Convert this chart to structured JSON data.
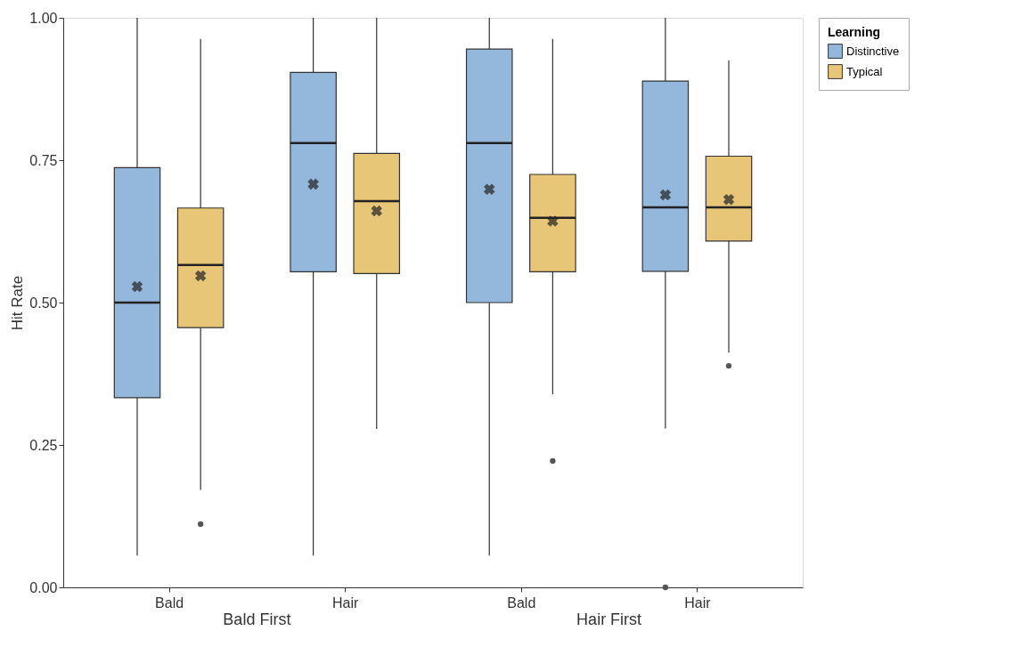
{
  "chart_data": {
    "type": "box",
    "ylabel": "Hit Rate",
    "legend_title": "Learning",
    "legend": "right",
    "grid": false,
    "categories": [
      "Bald",
      "Hair",
      "Bald",
      "Hair"
    ],
    "annotations": [
      "Bald First",
      "Hair First"
    ],
    "ylim": [
      0,
      1
    ],
    "yticks": [
      {
        "value": 0,
        "label": "0.00"
      },
      0.25,
      {
        "value": 0.5,
        "label": "0.50"
      },
      0.75,
      {
        "value": 1,
        "label": "1.00"
      }
    ],
    "series": [
      {
        "name": "Distinctive",
        "color": "#94b7dc",
        "boxes": [
          {
            "low": 0.056,
            "q1": 0.333,
            "median": 0.5,
            "q3": 0.737,
            "high": 1.0,
            "mean": 0.528
          },
          {
            "low": 0.056,
            "q1": 0.554,
            "median": 0.78,
            "q3": 0.904,
            "high": 1.0,
            "mean": 0.708
          },
          {
            "low": 0.056,
            "q1": 0.5,
            "median": 0.78,
            "q3": 0.945,
            "high": 1.0,
            "mean": 0.699
          },
          {
            "low": 0.279,
            "q1": 0.555,
            "median": 0.667,
            "q3": 0.889,
            "high": 1.0,
            "mean": 0.689,
            "outliers": [
              0.0
            ]
          }
        ]
      },
      {
        "name": "Typical",
        "color": "#e8c677",
        "boxes": [
          {
            "low": 0.171,
            "q1": 0.456,
            "median": 0.566,
            "q3": 0.666,
            "high": 0.963,
            "mean": 0.547,
            "outliers": [
              0.111
            ]
          },
          {
            "low": 0.278,
            "q1": 0.551,
            "median": 0.678,
            "q3": 0.762,
            "high": 1.0,
            "mean": 0.661
          },
          {
            "low": 0.339,
            "q1": 0.554,
            "median": 0.649,
            "q3": 0.725,
            "high": 0.963,
            "mean": 0.643,
            "outliers": [
              0.222
            ]
          },
          {
            "low": 0.412,
            "q1": 0.608,
            "median": 0.667,
            "q3": 0.757,
            "high": 0.925,
            "mean": 0.681,
            "outliers": [
              0.389
            ]
          }
        ]
      }
    ]
  }
}
